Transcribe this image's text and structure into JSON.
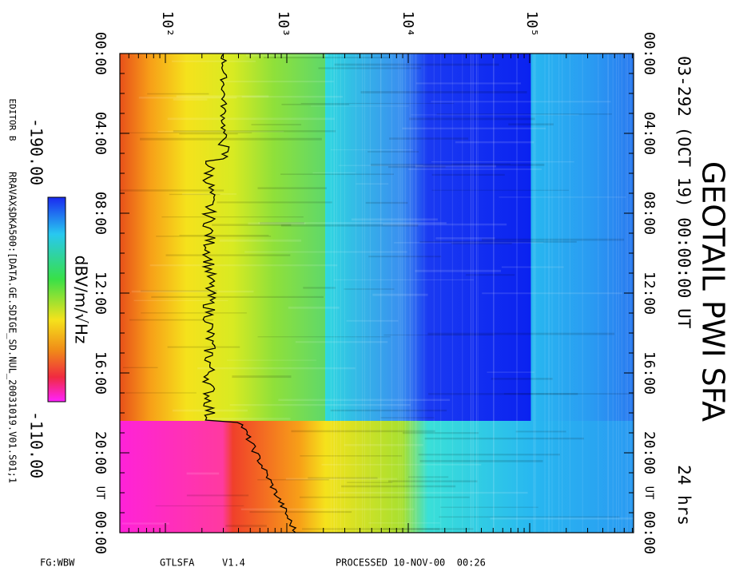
{
  "header": {
    "title": "GEOTAIL PWI SFA",
    "subtitle": "03-292 (OCT 19) 00:00:00 UT",
    "duration": "24 hrs"
  },
  "frequency_axis": {
    "labels": [
      "10²",
      "10³",
      "10⁴",
      "10⁵"
    ]
  },
  "time_axis": {
    "labels": [
      "00:00",
      "04:00",
      "08:00",
      "12:00",
      "16:00",
      "20:00",
      "00:00"
    ],
    "unit": "UT"
  },
  "colorbar": {
    "min": "-190.00",
    "max": "-110.00",
    "unit": "dBV/m/√Hz"
  },
  "side": {
    "editor": "EDITOR B",
    "file": "RRAVAX$DKA500:[DATA.GE.SDIGE_SD.NUL_20031019.V01.S01;1"
  },
  "footer": {
    "mode": "FG:WBW",
    "program": "GTLSFA",
    "version": "V1.4",
    "processed": "PROCESSED 10-NOV-00  00:26"
  }
}
